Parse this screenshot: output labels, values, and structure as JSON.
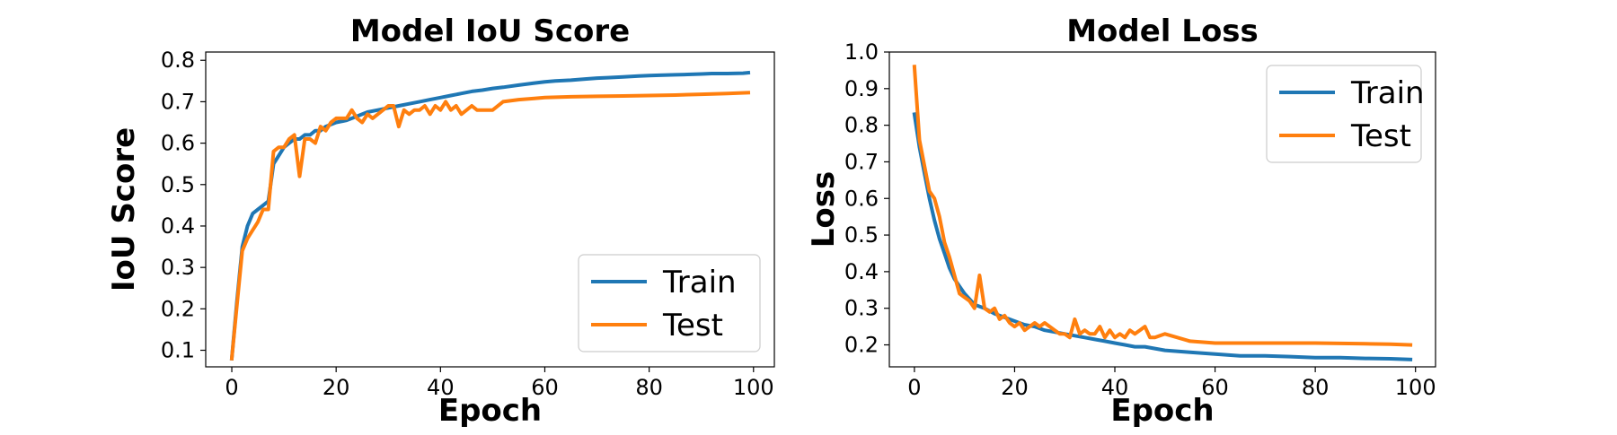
{
  "colors": {
    "train": "#1f77b4",
    "test": "#ff7f0e"
  },
  "chart_data": [
    {
      "type": "line",
      "title": "Model IoU Score",
      "xlabel": "Epoch",
      "ylabel": "IoU Score",
      "xlim": [
        -5,
        104
      ],
      "ylim": [
        0.06,
        0.82
      ],
      "xticks": [
        0,
        20,
        40,
        60,
        80,
        100
      ],
      "yticks": [
        0.1,
        0.2,
        0.3,
        0.4,
        0.5,
        0.6,
        0.7,
        0.8
      ],
      "legend": "lower-right",
      "grid": false,
      "series": [
        {
          "name": "Train",
          "color": "#1f77b4",
          "x": [
            0,
            1,
            2,
            3,
            4,
            5,
            6,
            7,
            8,
            9,
            10,
            11,
            12,
            13,
            14,
            15,
            16,
            17,
            18,
            19,
            20,
            22,
            24,
            26,
            28,
            30,
            32,
            34,
            36,
            38,
            40,
            42,
            44,
            46,
            48,
            50,
            52,
            55,
            58,
            60,
            62,
            65,
            68,
            70,
            72,
            75,
            78,
            80,
            82,
            85,
            88,
            90,
            92,
            95,
            98,
            99
          ],
          "values": [
            0.08,
            0.22,
            0.35,
            0.4,
            0.43,
            0.44,
            0.45,
            0.46,
            0.55,
            0.57,
            0.59,
            0.6,
            0.61,
            0.61,
            0.62,
            0.62,
            0.63,
            0.63,
            0.64,
            0.645,
            0.65,
            0.655,
            0.665,
            0.675,
            0.68,
            0.685,
            0.69,
            0.695,
            0.7,
            0.705,
            0.71,
            0.715,
            0.72,
            0.725,
            0.728,
            0.732,
            0.735,
            0.74,
            0.745,
            0.748,
            0.75,
            0.752,
            0.755,
            0.757,
            0.758,
            0.76,
            0.762,
            0.763,
            0.764,
            0.765,
            0.766,
            0.767,
            0.768,
            0.768,
            0.769,
            0.77
          ]
        },
        {
          "name": "Test",
          "color": "#ff7f0e",
          "x": [
            0,
            1,
            2,
            3,
            4,
            5,
            6,
            7,
            8,
            9,
            10,
            11,
            12,
            13,
            14,
            15,
            16,
            17,
            18,
            19,
            20,
            21,
            22,
            23,
            24,
            25,
            26,
            27,
            28,
            29,
            30,
            31,
            32,
            33,
            34,
            35,
            36,
            37,
            38,
            39,
            40,
            41,
            42,
            43,
            44,
            45,
            46,
            47,
            48,
            50,
            52,
            55,
            58,
            60,
            65,
            70,
            75,
            80,
            85,
            90,
            95,
            99
          ],
          "values": [
            0.08,
            0.21,
            0.34,
            0.37,
            0.39,
            0.41,
            0.44,
            0.44,
            0.58,
            0.59,
            0.59,
            0.61,
            0.62,
            0.52,
            0.61,
            0.61,
            0.6,
            0.64,
            0.63,
            0.65,
            0.66,
            0.66,
            0.66,
            0.68,
            0.66,
            0.65,
            0.67,
            0.66,
            0.67,
            0.68,
            0.69,
            0.69,
            0.64,
            0.68,
            0.67,
            0.68,
            0.68,
            0.69,
            0.67,
            0.69,
            0.68,
            0.7,
            0.68,
            0.69,
            0.67,
            0.68,
            0.69,
            0.68,
            0.68,
            0.68,
            0.7,
            0.705,
            0.708,
            0.71,
            0.712,
            0.713,
            0.714,
            0.715,
            0.716,
            0.718,
            0.72,
            0.722
          ]
        }
      ]
    },
    {
      "type": "line",
      "title": "Model Loss",
      "xlabel": "Epoch",
      "ylabel": "Loss",
      "xlim": [
        -5,
        104
      ],
      "ylim": [
        0.14,
        1.0
      ],
      "xticks": [
        0,
        20,
        40,
        60,
        80,
        100
      ],
      "yticks": [
        0.2,
        0.3,
        0.4,
        0.5,
        0.6,
        0.7,
        0.8,
        0.9,
        1.0
      ],
      "legend": "upper-right",
      "grid": false,
      "series": [
        {
          "name": "Train",
          "color": "#1f77b4",
          "x": [
            0,
            1,
            2,
            3,
            4,
            5,
            6,
            7,
            8,
            9,
            10,
            12,
            14,
            16,
            18,
            20,
            22,
            24,
            26,
            28,
            30,
            32,
            34,
            36,
            38,
            40,
            42,
            44,
            46,
            48,
            50,
            55,
            60,
            65,
            70,
            75,
            80,
            85,
            90,
            95,
            99
          ],
          "values": [
            0.83,
            0.74,
            0.67,
            0.6,
            0.54,
            0.49,
            0.45,
            0.41,
            0.38,
            0.36,
            0.34,
            0.31,
            0.3,
            0.285,
            0.275,
            0.265,
            0.255,
            0.25,
            0.24,
            0.235,
            0.23,
            0.225,
            0.22,
            0.215,
            0.21,
            0.205,
            0.2,
            0.195,
            0.195,
            0.19,
            0.185,
            0.18,
            0.175,
            0.17,
            0.17,
            0.168,
            0.165,
            0.165,
            0.163,
            0.162,
            0.16
          ]
        },
        {
          "name": "Test",
          "color": "#ff7f0e",
          "x": [
            0,
            1,
            2,
            3,
            4,
            5,
            6,
            7,
            8,
            9,
            10,
            11,
            12,
            13,
            14,
            15,
            16,
            17,
            18,
            19,
            20,
            21,
            22,
            23,
            24,
            25,
            26,
            27,
            28,
            29,
            30,
            31,
            32,
            33,
            34,
            35,
            36,
            37,
            38,
            39,
            40,
            41,
            42,
            43,
            44,
            45,
            46,
            47,
            48,
            50,
            55,
            60,
            65,
            70,
            75,
            80,
            85,
            90,
            95,
            99
          ],
          "values": [
            0.96,
            0.76,
            0.69,
            0.62,
            0.6,
            0.55,
            0.48,
            0.44,
            0.39,
            0.34,
            0.33,
            0.32,
            0.3,
            0.39,
            0.3,
            0.29,
            0.3,
            0.27,
            0.28,
            0.26,
            0.25,
            0.26,
            0.24,
            0.25,
            0.26,
            0.25,
            0.26,
            0.25,
            0.24,
            0.23,
            0.23,
            0.22,
            0.27,
            0.23,
            0.24,
            0.23,
            0.23,
            0.25,
            0.22,
            0.24,
            0.22,
            0.23,
            0.22,
            0.24,
            0.23,
            0.24,
            0.25,
            0.22,
            0.22,
            0.23,
            0.21,
            0.205,
            0.205,
            0.205,
            0.205,
            0.205,
            0.204,
            0.203,
            0.202,
            0.2
          ]
        }
      ]
    }
  ]
}
